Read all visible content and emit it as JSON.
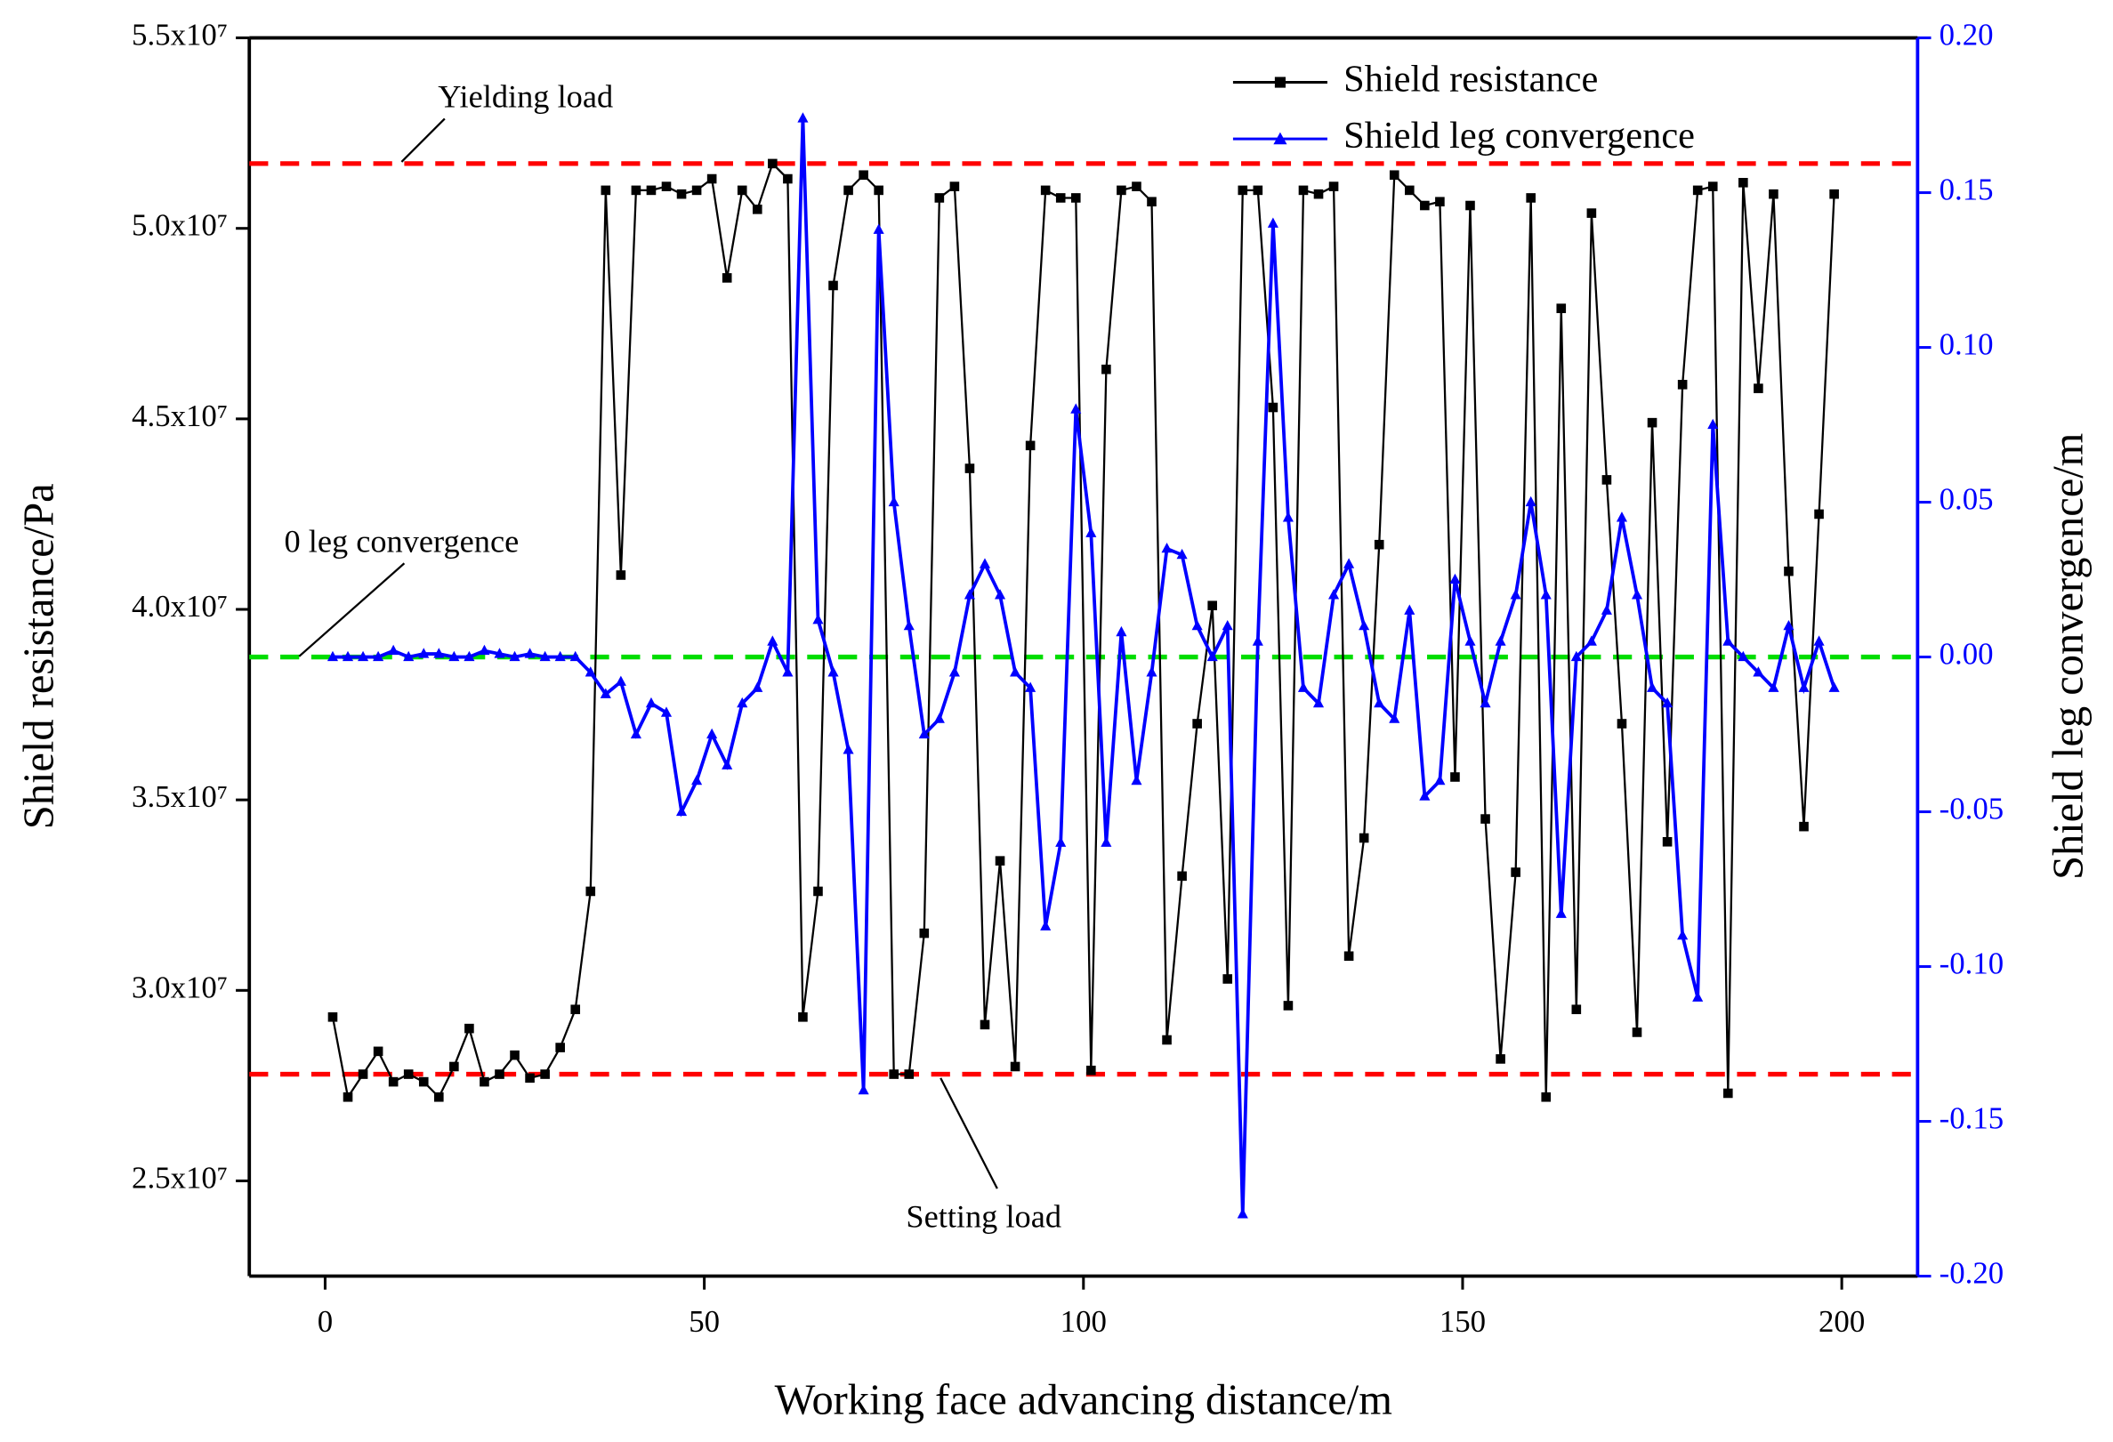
{
  "chart_data": {
    "type": "line",
    "x_label": "Working face advancing distance/m",
    "y_label": "Shield resistance/Pa",
    "y2_label": "Shield leg convergence/m",
    "xlim": [
      -10,
      210
    ],
    "xticks": [
      0,
      50,
      100,
      150,
      200
    ],
    "ylim": [
      22500000,
      55000000
    ],
    "yticks": [
      {
        "value": 25000000,
        "label": "2.5x10⁷"
      },
      {
        "value": 30000000,
        "label": "3.0x10⁷"
      },
      {
        "value": 35000000,
        "label": "3.5x10⁷"
      },
      {
        "value": 40000000,
        "label": "4.0x10⁷"
      },
      {
        "value": 45000000,
        "label": "4.5x10⁷"
      },
      {
        "value": 50000000,
        "label": "5.0x10⁷"
      },
      {
        "value": 55000000,
        "label": "5.5x10⁷"
      }
    ],
    "y2lim": [
      -0.2,
      0.2
    ],
    "y2ticks": [
      {
        "value": -0.2,
        "label": "-0.20"
      },
      -0.15,
      {
        "value": -0.1,
        "label": "-0.10"
      },
      -0.05,
      {
        "value": 0,
        "label": "0.00"
      },
      0.05,
      {
        "value": 0.1,
        "label": "0.10"
      },
      0.15,
      {
        "value": 0.2,
        "label": "0.20"
      }
    ],
    "y2_color": "#0000ff",
    "legend": "top-right",
    "x": [
      1,
      3,
      5,
      7,
      9,
      11,
      13,
      15,
      17,
      19,
      21,
      23,
      25,
      27,
      29,
      31,
      33,
      35,
      37,
      39,
      41,
      43,
      45,
      47,
      49,
      51,
      53,
      55,
      57,
      59,
      61,
      63,
      65,
      67,
      69,
      71,
      73,
      75,
      77,
      79,
      81,
      83,
      85,
      87,
      89,
      91,
      93,
      95,
      97,
      99,
      101,
      103,
      105,
      107,
      109,
      111,
      113,
      115,
      117,
      119,
      121,
      123,
      125,
      127,
      129,
      131,
      133,
      135,
      137,
      139,
      141,
      143,
      145,
      147,
      149,
      151,
      153,
      155,
      157,
      159,
      161,
      163,
      165,
      167,
      169,
      171,
      173,
      175,
      177,
      179,
      181,
      183,
      185,
      187,
      189,
      191,
      193,
      195,
      197,
      199
    ],
    "series": [
      {
        "name": "Shield resistance",
        "color": "#000000",
        "marker": "square",
        "values": [
          29300000,
          27200000,
          27800000,
          28400000,
          27600000,
          27800000,
          27600000,
          27200000,
          28000000,
          29000000,
          27600000,
          27800000,
          28300000,
          27700000,
          27800000,
          28500000,
          29500000,
          32600000,
          51000000,
          40900000,
          51000000,
          51000000,
          51100000,
          50900000,
          51000000,
          51300000,
          48700000,
          51000000,
          50500000,
          51700000,
          51300000,
          29300000,
          32600000,
          48500000,
          51000000,
          51400000,
          51000000,
          27800000,
          27800000,
          31500000,
          50800000,
          51100000,
          43700000,
          29100000,
          33400000,
          28000000,
          44300000,
          51000000,
          50800000,
          50800000,
          27900000,
          46300000,
          51000000,
          51100000,
          50700000,
          28700000,
          33000000,
          37000000,
          40100000,
          30300000,
          51000000,
          51000000,
          45300000,
          29600000,
          51000000,
          50900000,
          51100000,
          30900000,
          34000000,
          41700000,
          51400000,
          51000000,
          50600000,
          50700000,
          35600000,
          50600000,
          34500000,
          28200000,
          33100000,
          50800000,
          27200000,
          47900000,
          29500000,
          50400000,
          43400000,
          37000000,
          28900000,
          44900000,
          33900000,
          45900000,
          51000000,
          51100000,
          27300000,
          51200000,
          45800000,
          50900000,
          41000000,
          34300000,
          42500000,
          50900000
        ]
      },
      {
        "name": "Shield leg convergence",
        "color": "#0000ff",
        "marker": "triangle",
        "axis": "y2",
        "values": [
          0,
          0,
          0,
          0,
          0.002,
          0,
          0.001,
          0.001,
          0,
          0,
          0.002,
          0.001,
          0,
          0.001,
          0,
          0,
          0,
          -0.005,
          -0.012,
          -0.008,
          -0.025,
          -0.015,
          -0.018,
          -0.05,
          -0.04,
          -0.025,
          -0.035,
          -0.015,
          -0.01,
          0.005,
          -0.005,
          0.174,
          0.012,
          -0.005,
          -0.03,
          -0.14,
          0.138,
          0.05,
          0.01,
          -0.025,
          -0.02,
          -0.005,
          0.02,
          0.03,
          0.02,
          -0.005,
          -0.01,
          -0.087,
          -0.06,
          0.08,
          0.04,
          -0.06,
          0.008,
          -0.04,
          -0.005,
          0.035,
          0.033,
          0.01,
          0,
          0.01,
          -0.18,
          0.005,
          0.14,
          0.045,
          -0.01,
          -0.015,
          0.02,
          0.03,
          0.01,
          -0.015,
          -0.02,
          0.015,
          -0.045,
          -0.04,
          0.025,
          0.005,
          -0.015,
          0.005,
          0.02,
          0.05,
          0.02,
          -0.083,
          0,
          0.005,
          0.015,
          0.045,
          0.02,
          -0.01,
          -0.015,
          -0.09,
          -0.11,
          0.075,
          0.005,
          0,
          -0.005,
          -0.01,
          0.01,
          -0.01,
          0.005,
          -0.01
        ]
      }
    ],
    "reference_lines": [
      {
        "label": "Yielding load",
        "value": 51700000,
        "axis": "y",
        "color": "#ff0000"
      },
      {
        "label": "Setting load",
        "value": 27800000,
        "axis": "y",
        "color": "#ff0000"
      },
      {
        "label": "0 leg convergence",
        "value": 0,
        "axis": "y2",
        "color": "#00dd00"
      }
    ]
  }
}
